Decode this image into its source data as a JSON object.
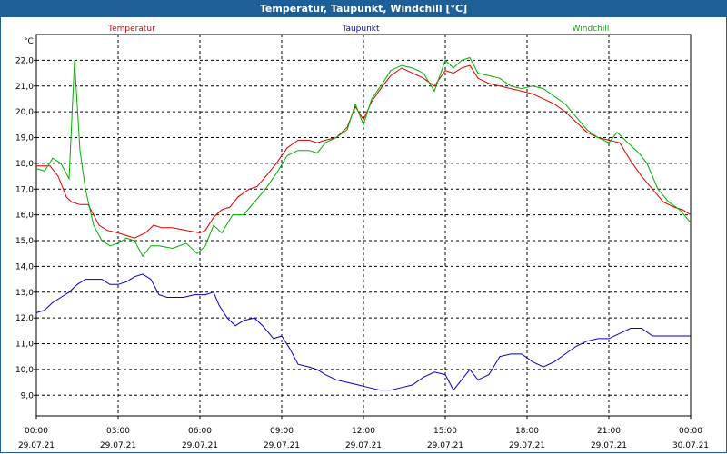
{
  "window": {
    "title": "Temperatur, Taupunkt, Windchill [°C]"
  },
  "chart_data": {
    "type": "line",
    "title": "Temperatur, Taupunkt, Windchill [°C]",
    "ylabel": "°C",
    "ylim": [
      8.2,
      23.0
    ],
    "grid": true,
    "legend_position": "top",
    "x_ticks_hours": [
      0,
      3,
      6,
      9,
      12,
      15,
      18,
      21,
      24
    ],
    "x_tick_times": [
      "00:00",
      "03:00",
      "06:00",
      "09:00",
      "12:00",
      "15:00",
      "18:00",
      "21:00",
      "00:00"
    ],
    "x_tick_dates": [
      "29.07.21",
      "29.07.21",
      "29.07.21",
      "29.07.21",
      "29.07.21",
      "29.07.21",
      "29.07.21",
      "29.07.21",
      "30.07.21"
    ],
    "y_ticks": [
      9.0,
      10.0,
      11.0,
      12.0,
      13.0,
      14.0,
      15.0,
      16.0,
      17.0,
      18.0,
      19.0,
      20.0,
      21.0,
      22.0
    ],
    "y_tick_labels": [
      "9,0",
      "10,0",
      "11,0",
      "12,0",
      "13,0",
      "14,0",
      "15,0",
      "16,0",
      "17,0",
      "18,0",
      "19,0",
      "20,0",
      "21,0",
      "22,0"
    ],
    "series": [
      {
        "name": "Temperatur",
        "color": "#e00000",
        "points": [
          [
            0,
            17.9
          ],
          [
            0.5,
            17.9
          ],
          [
            0.8,
            17.5
          ],
          [
            1.1,
            16.7
          ],
          [
            1.3,
            16.5
          ],
          [
            1.6,
            16.4
          ],
          [
            1.9,
            16.4
          ],
          [
            2.1,
            16.0
          ],
          [
            2.3,
            15.6
          ],
          [
            2.6,
            15.4
          ],
          [
            3.0,
            15.3
          ],
          [
            3.3,
            15.2
          ],
          [
            3.6,
            15.1
          ],
          [
            4.0,
            15.3
          ],
          [
            4.3,
            15.6
          ],
          [
            4.6,
            15.5
          ],
          [
            5.0,
            15.5
          ],
          [
            5.5,
            15.4
          ],
          [
            6.0,
            15.3
          ],
          [
            6.2,
            15.4
          ],
          [
            6.5,
            15.9
          ],
          [
            6.8,
            16.2
          ],
          [
            7.1,
            16.3
          ],
          [
            7.4,
            16.7
          ],
          [
            7.8,
            17.0
          ],
          [
            8.1,
            17.1
          ],
          [
            8.5,
            17.6
          ],
          [
            8.8,
            18.0
          ],
          [
            9.2,
            18.6
          ],
          [
            9.6,
            18.9
          ],
          [
            10.0,
            18.9
          ],
          [
            10.3,
            18.8
          ],
          [
            10.6,
            18.9
          ],
          [
            11.0,
            19.0
          ],
          [
            11.4,
            19.4
          ],
          [
            11.7,
            20.2
          ],
          [
            12.0,
            19.7
          ],
          [
            12.3,
            20.4
          ],
          [
            12.7,
            21.0
          ],
          [
            13.0,
            21.4
          ],
          [
            13.4,
            21.7
          ],
          [
            13.8,
            21.5
          ],
          [
            14.2,
            21.3
          ],
          [
            14.6,
            21.0
          ],
          [
            15.0,
            21.6
          ],
          [
            15.3,
            21.5
          ],
          [
            15.6,
            21.7
          ],
          [
            15.9,
            21.8
          ],
          [
            16.2,
            21.3
          ],
          [
            16.6,
            21.1
          ],
          [
            17.0,
            21.0
          ],
          [
            17.4,
            20.9
          ],
          [
            17.8,
            20.8
          ],
          [
            18.2,
            20.7
          ],
          [
            18.6,
            20.5
          ],
          [
            19.0,
            20.3
          ],
          [
            19.4,
            20.0
          ],
          [
            19.8,
            19.6
          ],
          [
            20.2,
            19.2
          ],
          [
            20.6,
            19.0
          ],
          [
            21.0,
            18.9
          ],
          [
            21.4,
            18.8
          ],
          [
            21.8,
            18.1
          ],
          [
            22.2,
            17.5
          ],
          [
            22.6,
            17.0
          ],
          [
            23.0,
            16.5
          ],
          [
            23.4,
            16.3
          ],
          [
            23.7,
            16.2
          ],
          [
            24.0,
            16.0
          ]
        ]
      },
      {
        "name": "Taupunkt",
        "color": "#0000c8",
        "points": [
          [
            0,
            12.2
          ],
          [
            0.3,
            12.3
          ],
          [
            0.6,
            12.6
          ],
          [
            0.9,
            12.8
          ],
          [
            1.2,
            13.0
          ],
          [
            1.5,
            13.3
          ],
          [
            1.8,
            13.5
          ],
          [
            2.1,
            13.5
          ],
          [
            2.4,
            13.5
          ],
          [
            2.7,
            13.3
          ],
          [
            3.0,
            13.3
          ],
          [
            3.3,
            13.4
          ],
          [
            3.6,
            13.6
          ],
          [
            3.9,
            13.7
          ],
          [
            4.2,
            13.5
          ],
          [
            4.5,
            12.9
          ],
          [
            4.8,
            12.8
          ],
          [
            5.1,
            12.8
          ],
          [
            5.4,
            12.8
          ],
          [
            5.8,
            12.9
          ],
          [
            6.2,
            12.9
          ],
          [
            6.5,
            13.0
          ],
          [
            6.7,
            12.5
          ],
          [
            7.0,
            12.0
          ],
          [
            7.3,
            11.7
          ],
          [
            7.6,
            11.9
          ],
          [
            8.0,
            12.0
          ],
          [
            8.3,
            11.7
          ],
          [
            8.7,
            11.2
          ],
          [
            9.0,
            11.3
          ],
          [
            9.3,
            10.8
          ],
          [
            9.6,
            10.2
          ],
          [
            10.0,
            10.1
          ],
          [
            10.3,
            10.0
          ],
          [
            10.6,
            9.8
          ],
          [
            11.0,
            9.6
          ],
          [
            11.4,
            9.5
          ],
          [
            11.8,
            9.4
          ],
          [
            12.2,
            9.3
          ],
          [
            12.6,
            9.2
          ],
          [
            13.0,
            9.2
          ],
          [
            13.4,
            9.3
          ],
          [
            13.8,
            9.4
          ],
          [
            14.2,
            9.7
          ],
          [
            14.6,
            9.9
          ],
          [
            15.0,
            9.8
          ],
          [
            15.3,
            9.2
          ],
          [
            15.6,
            9.6
          ],
          [
            15.9,
            10.0
          ],
          [
            16.2,
            9.6
          ],
          [
            16.6,
            9.8
          ],
          [
            17.0,
            10.5
          ],
          [
            17.4,
            10.6
          ],
          [
            17.8,
            10.6
          ],
          [
            18.2,
            10.3
          ],
          [
            18.6,
            10.1
          ],
          [
            19.0,
            10.3
          ],
          [
            19.4,
            10.6
          ],
          [
            19.8,
            10.9
          ],
          [
            20.2,
            11.1
          ],
          [
            20.6,
            11.2
          ],
          [
            21.0,
            11.2
          ],
          [
            21.4,
            11.4
          ],
          [
            21.8,
            11.6
          ],
          [
            22.2,
            11.6
          ],
          [
            22.6,
            11.3
          ],
          [
            23.0,
            11.3
          ],
          [
            23.4,
            11.3
          ],
          [
            23.8,
            11.3
          ],
          [
            24.0,
            11.3
          ]
        ]
      },
      {
        "name": "Windchill",
        "color": "#00b000",
        "points": [
          [
            0,
            17.8
          ],
          [
            0.3,
            17.7
          ],
          [
            0.6,
            18.2
          ],
          [
            0.9,
            18.0
          ],
          [
            1.2,
            17.4
          ],
          [
            1.4,
            22.0
          ],
          [
            1.6,
            18.5
          ],
          [
            1.8,
            17.0
          ],
          [
            2.1,
            15.6
          ],
          [
            2.4,
            15.0
          ],
          [
            2.7,
            14.8
          ],
          [
            3.0,
            14.9
          ],
          [
            3.3,
            15.1
          ],
          [
            3.6,
            15.0
          ],
          [
            3.9,
            14.4
          ],
          [
            4.2,
            14.8
          ],
          [
            4.5,
            14.8
          ],
          [
            5.0,
            14.7
          ],
          [
            5.5,
            14.9
          ],
          [
            5.9,
            14.5
          ],
          [
            6.2,
            14.8
          ],
          [
            6.5,
            15.6
          ],
          [
            6.8,
            15.3
          ],
          [
            7.2,
            16.0
          ],
          [
            7.6,
            16.0
          ],
          [
            8.0,
            16.5
          ],
          [
            8.4,
            17.0
          ],
          [
            8.8,
            17.6
          ],
          [
            9.2,
            18.3
          ],
          [
            9.6,
            18.5
          ],
          [
            10.0,
            18.5
          ],
          [
            10.3,
            18.4
          ],
          [
            10.6,
            18.8
          ],
          [
            11.0,
            19.0
          ],
          [
            11.4,
            19.3
          ],
          [
            11.7,
            20.3
          ],
          [
            12.0,
            19.5
          ],
          [
            12.3,
            20.5
          ],
          [
            12.7,
            21.1
          ],
          [
            13.0,
            21.6
          ],
          [
            13.4,
            21.8
          ],
          [
            13.8,
            21.7
          ],
          [
            14.2,
            21.5
          ],
          [
            14.6,
            20.8
          ],
          [
            15.0,
            22.0
          ],
          [
            15.3,
            21.7
          ],
          [
            15.6,
            22.0
          ],
          [
            15.9,
            22.1
          ],
          [
            16.2,
            21.5
          ],
          [
            16.6,
            21.4
          ],
          [
            17.0,
            21.3
          ],
          [
            17.4,
            21.0
          ],
          [
            17.8,
            20.9
          ],
          [
            18.2,
            21.0
          ],
          [
            18.6,
            20.9
          ],
          [
            19.0,
            20.6
          ],
          [
            19.4,
            20.3
          ],
          [
            19.8,
            19.8
          ],
          [
            20.2,
            19.3
          ],
          [
            20.6,
            19.0
          ],
          [
            21.0,
            18.8
          ],
          [
            21.3,
            19.2
          ],
          [
            21.7,
            18.8
          ],
          [
            22.1,
            18.4
          ],
          [
            22.4,
            18.0
          ],
          [
            22.8,
            17.0
          ],
          [
            23.2,
            16.5
          ],
          [
            23.6,
            16.2
          ],
          [
            24.0,
            15.7
          ]
        ]
      }
    ]
  }
}
